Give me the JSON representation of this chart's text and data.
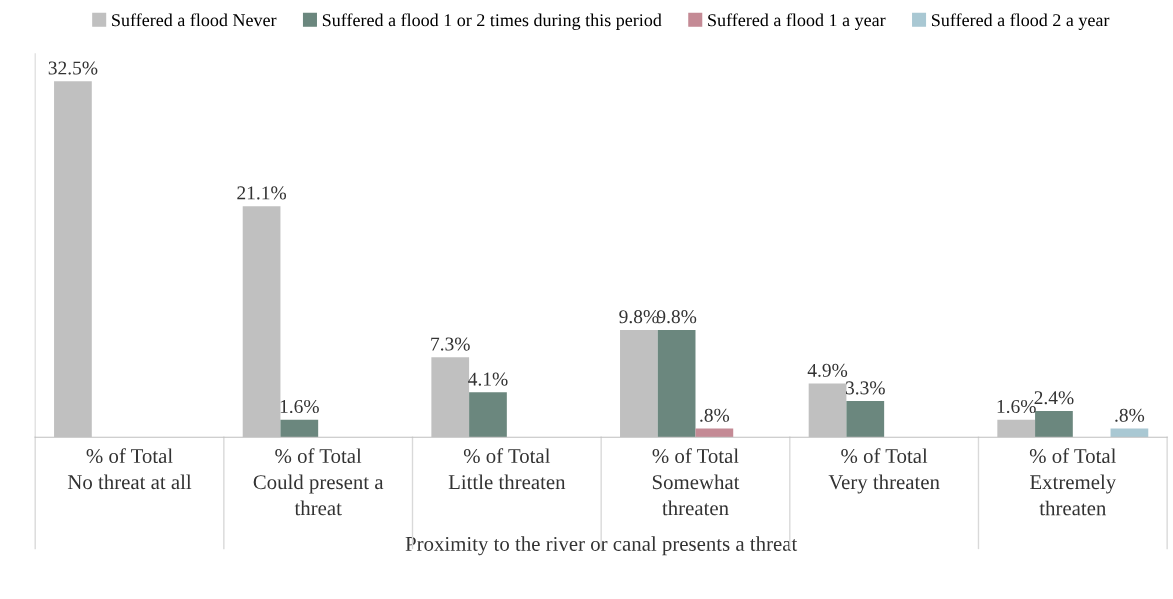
{
  "chart_data": {
    "type": "bar",
    "xlabel": "Proximity to the river or canal presents a threat",
    "categories": [
      "% of Total\nNo threat at all",
      "% of Total\nCould present a\nthreat",
      "% of Total\nLittle threaten",
      "% of Total\nSomewhat\nthreaten",
      "% of Total\nVery threaten",
      "% of Total\nExtremely\nthreaten"
    ],
    "series": [
      {
        "name": "Suffered a flood Never",
        "color": "#c0c0c0",
        "values": [
          32.5,
          21.1,
          7.3,
          9.8,
          4.9,
          1.6
        ],
        "value_labels": [
          "32.5%",
          "21.1%",
          "7.3%",
          "9.8%",
          "4.9%",
          "1.6%"
        ]
      },
      {
        "name": "Suffered a flood 1 or 2 times during this period",
        "color": "#6b877e",
        "values": [
          null,
          1.6,
          4.1,
          9.8,
          3.3,
          2.4
        ],
        "value_labels": [
          null,
          "1.6%",
          "4.1%",
          "9.8%",
          "3.3%",
          "2.4%"
        ]
      },
      {
        "name": "Suffered a flood 1 a year",
        "color": "#c48a95",
        "values": [
          null,
          null,
          null,
          0.8,
          null,
          null
        ],
        "value_labels": [
          null,
          null,
          null,
          ".8%",
          null,
          null
        ]
      },
      {
        "name": "Suffered a flood 2 a year",
        "color": "#a9c8d3",
        "values": [
          null,
          null,
          null,
          null,
          null,
          0.8
        ],
        "value_labels": [
          null,
          null,
          null,
          null,
          null,
          ".8%"
        ]
      }
    ],
    "ylim": [
      0,
      35
    ],
    "tick_labels": "x",
    "legend": "top"
  }
}
